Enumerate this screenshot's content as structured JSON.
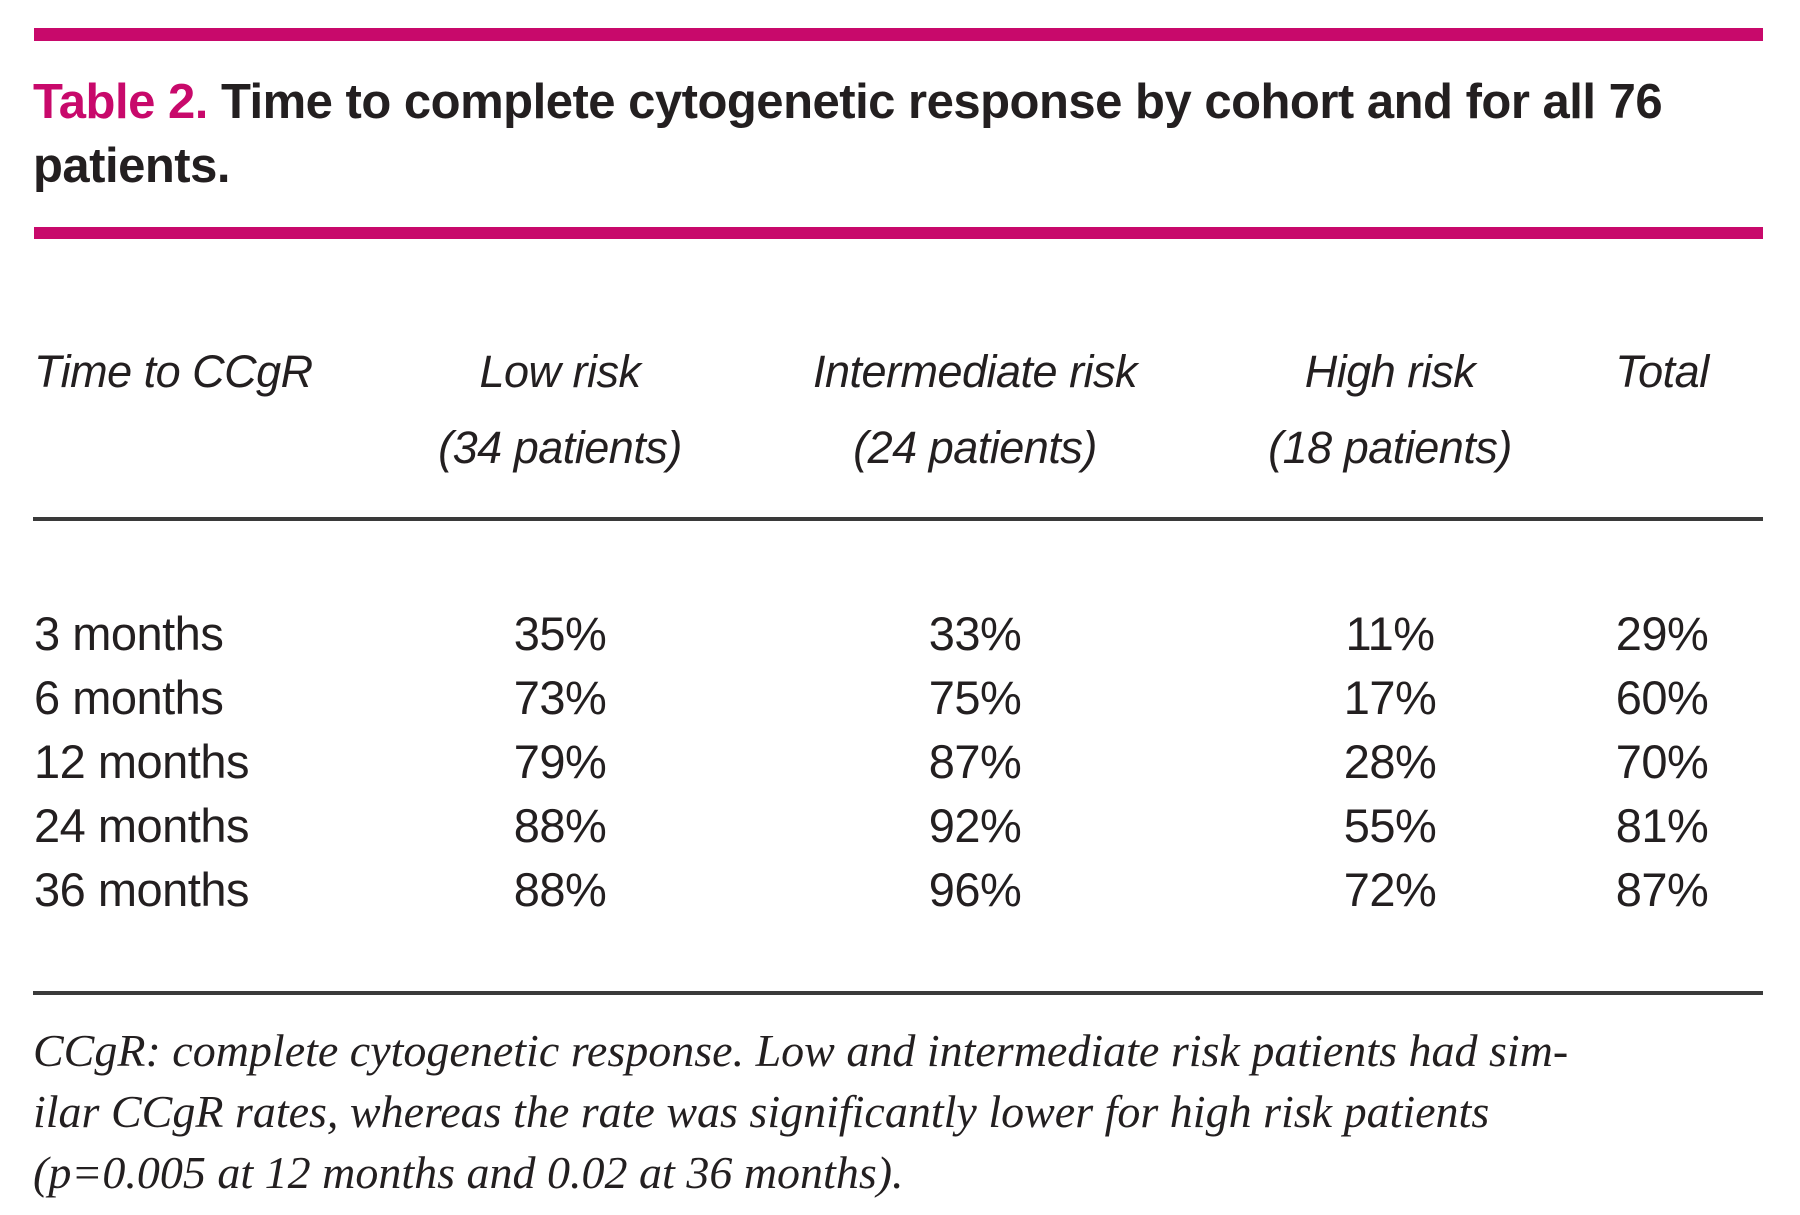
{
  "colors": {
    "accent": "#C8096B",
    "text": "#231F20",
    "rule": "#3A3A3A"
  },
  "title": {
    "number_label": "Table 2.",
    "text": " Time to complete cytogenetic response by cohort and for all 76 patients."
  },
  "table": {
    "columns": [
      {
        "label": "Time to CCgR",
        "sub": ""
      },
      {
        "label": "Low risk",
        "sub": "(34 patients)"
      },
      {
        "label": "Intermediate risk",
        "sub": "(24 patients)"
      },
      {
        "label": "High risk",
        "sub": "(18 patients)"
      },
      {
        "label": "Total",
        "sub": ""
      }
    ],
    "rows": [
      {
        "time": "3 months",
        "low": "35%",
        "intermediate": "33%",
        "high": "11%",
        "total": "29%"
      },
      {
        "time": "6 months",
        "low": "73%",
        "intermediate": "75%",
        "high": "17%",
        "total": "60%"
      },
      {
        "time": "12 months",
        "low": "79%",
        "intermediate": "87%",
        "high": "28%",
        "total": "70%"
      },
      {
        "time": "24 months",
        "low": "88%",
        "intermediate": "92%",
        "high": "55%",
        "total": "81%"
      },
      {
        "time": "36 months",
        "low": "88%",
        "intermediate": "96%",
        "high": "72%",
        "total": "87%"
      }
    ]
  },
  "footnote": {
    "lines": [
      "CCgR: complete cytogenetic response. Low and intermediate risk patients had sim-",
      "ilar CCgR rates, whereas the rate was significantly lower for high risk patients",
      "(p=0.005 at 12 months and 0.02 at 36 months)."
    ]
  }
}
